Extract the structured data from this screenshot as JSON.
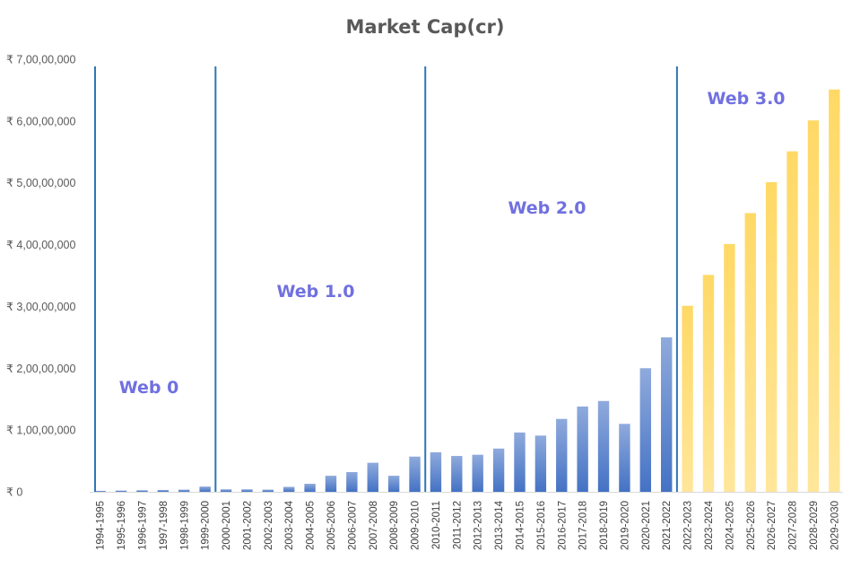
{
  "chart_data": {
    "type": "bar",
    "title": "Market Cap(cr)",
    "xlabel": "",
    "ylabel": "",
    "ylim": [
      0,
      70000000
    ],
    "y_tick_values": [
      0,
      10000000,
      20000000,
      30000000,
      40000000,
      50000000,
      60000000,
      70000000
    ],
    "y_tick_labels": [
      "₹ 0",
      "₹ 1,00,00,000",
      "₹ 2,00,00,000",
      "₹ 3,00,00,000",
      "₹ 4,00,00,000",
      "₹ 5,00,00,000",
      "₹ 6,00,00,000",
      "₹ 7,00,00,000"
    ],
    "grid": false,
    "legend": "none",
    "categories": [
      "1994-1995",
      "1995-1996",
      "1996-1997",
      "1997-1998",
      "1998-1999",
      "1999-2000",
      "2000-2001",
      "2001-2002",
      "2002-2003",
      "2003-2004",
      "2004-2005",
      "2005-2006",
      "2006-2007",
      "2007-2008",
      "2008-2009",
      "2009-2010",
      "2010-2011",
      "2011-2012",
      "2012-2013",
      "2013-2014",
      "2014-2015",
      "2015-2016",
      "2016-2017",
      "2017-2018",
      "2018-2019",
      "2019-2020",
      "2020-2021",
      "2021-2022",
      "2022-2023",
      "2023-2024",
      "2024-2025",
      "2025-2026",
      "2026-2027",
      "2027-2028",
      "2028-2029",
      "2029-2030"
    ],
    "values": [
      150000,
      200000,
      250000,
      300000,
      350000,
      850000,
      400000,
      400000,
      350000,
      800000,
      1300000,
      2600000,
      3200000,
      4700000,
      2600000,
      5700000,
      6400000,
      5800000,
      6000000,
      7000000,
      9600000,
      9100000,
      11800000,
      13800000,
      14700000,
      11000000,
      20000000,
      25000000,
      30100000,
      35100000,
      40100000,
      45100000,
      50100000,
      55100000,
      60100000,
      65100000
    ],
    "colors": {
      "historical": "#4472C4",
      "historical_light": "#8FAADC",
      "projected": "#FFD966",
      "projected_light": "#FFE69A",
      "divider": "#2E75B6",
      "era_label": "#7070E0",
      "axis": "#D9D9D9"
    },
    "projected_from_index": 28,
    "eras": [
      {
        "label": "Web 0",
        "start_index": 0,
        "end_index": 5
      },
      {
        "label": "Web 1.0",
        "start_index": 6,
        "end_index": 15
      },
      {
        "label": "Web 2.0",
        "start_index": 16,
        "end_index": 27
      },
      {
        "label": "Web 3.0",
        "start_index": 28,
        "end_index": 35
      }
    ]
  }
}
